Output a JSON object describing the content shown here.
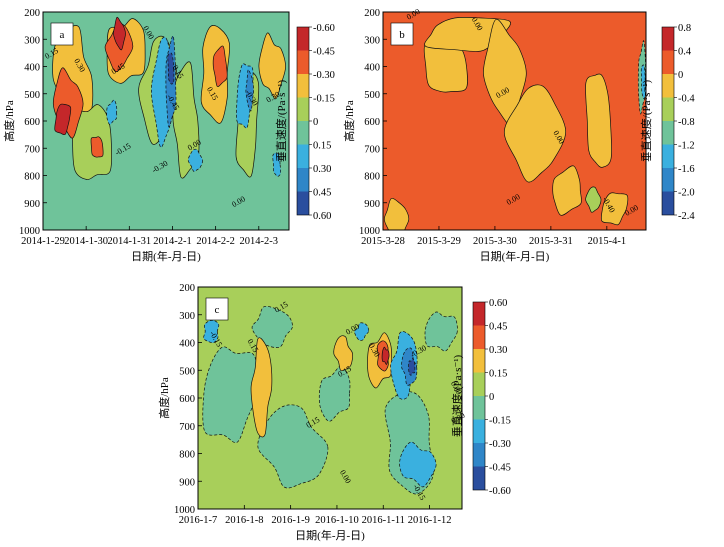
{
  "chart_data": [
    {
      "type": "heatmap",
      "panel_label": "a",
      "xlabel": "日期(年-月-日)",
      "ylabel": "高度/hPa",
      "x_ticks": [
        "2014-1-29",
        "2014-1-30",
        "2014-1-31",
        "2014-2-1",
        "2014-2-2",
        "2014-2-3"
      ],
      "y_ticks": [
        200,
        300,
        400,
        500,
        600,
        700,
        800,
        900,
        1000
      ],
      "ylim": [
        1000,
        200
      ],
      "colorbar": {
        "label": "垂直速度/(Pa·s⁻¹)",
        "levels": [
          -0.6,
          -0.45,
          -0.3,
          -0.15,
          0,
          0.15,
          0.3,
          0.45,
          0.6
        ],
        "tick_labels": [
          "-0.60",
          "-0.45",
          "-0.30",
          "-0.15",
          "0",
          "0.15",
          "0.30",
          "0.45",
          "0.60"
        ],
        "colors": [
          "#2a4e9e",
          "#2f86c8",
          "#3ab0df",
          "#6fc39a",
          "#a8cf5a",
          "#f2bf3c",
          "#ec5b2b",
          "#c4272a"
        ]
      },
      "contour_labels": [
        "0.15",
        "0.30",
        "0.45",
        "0.00",
        "-0.15",
        "-0.45",
        "-0.30",
        "0.15",
        "0.00",
        "0.15",
        "0.00",
        "-0.30",
        "0.30"
      ]
    },
    {
      "type": "heatmap",
      "panel_label": "b",
      "xlabel": "日期(年-月-日)",
      "ylabel": "高度/hPa",
      "x_ticks": [
        "2015-3-28",
        "2015-3-29",
        "2015-3-30",
        "2015-3-31",
        "2015-4-1"
      ],
      "y_ticks": [
        200,
        300,
        400,
        500,
        600,
        700,
        800,
        900,
        1000
      ],
      "ylim": [
        1000,
        200
      ],
      "colorbar": {
        "label": "垂直速度/(Pa·s⁻¹)",
        "levels": [
          -2.4,
          -2.0,
          -1.6,
          -1.2,
          -0.8,
          -0.4,
          0,
          0.4,
          0.8
        ],
        "tick_labels": [
          "0.8",
          "0.4",
          "0",
          "-0.4",
          "-0.8",
          "-1.2",
          "-1.6",
          "-2.0",
          "-2.4"
        ],
        "colors": [
          "#2a4e9e",
          "#2f86c8",
          "#3ab0df",
          "#6fc39a",
          "#a8cf5a",
          "#f2bf3c",
          "#ec5b2b",
          "#c4272a"
        ]
      },
      "contour_labels": [
        "0.00",
        "0.00",
        "0.00",
        "0.00",
        "0.00",
        "-0.40",
        "0.00"
      ]
    },
    {
      "type": "heatmap",
      "panel_label": "c",
      "xlabel": "日期(年-月-日)",
      "ylabel": "高度/hPa",
      "x_ticks": [
        "2016-1-7",
        "2016-1-8",
        "2016-1-9",
        "2016-1-10",
        "2016-1-11",
        "2016-1-12"
      ],
      "y_ticks": [
        200,
        300,
        400,
        500,
        600,
        700,
        800,
        900,
        1000
      ],
      "ylim": [
        1000,
        200
      ],
      "colorbar": {
        "label": "垂直速度/(Pa·s⁻¹)",
        "levels": [
          -0.6,
          -0.45,
          -0.3,
          -0.15,
          0,
          0.15,
          0.3,
          0.45,
          0.6
        ],
        "tick_labels": [
          "0.60",
          "0.45",
          "0.30",
          "0.15",
          "0",
          "-0.15",
          "-0.30",
          "-0.45",
          "-0.60"
        ],
        "colors": [
          "#2a4e9e",
          "#2f86c8",
          "#3ab0df",
          "#6fc39a",
          "#a8cf5a",
          "#f2bf3c",
          "#ec5b2b",
          "#c4272a"
        ]
      },
      "contour_labels": [
        "0.15",
        "-0.15",
        "0.00",
        "0.15",
        "0.15",
        "0.30",
        "-0.30",
        "0.00",
        "0.15",
        "0.00",
        "0.00",
        "-0.15"
      ]
    }
  ]
}
